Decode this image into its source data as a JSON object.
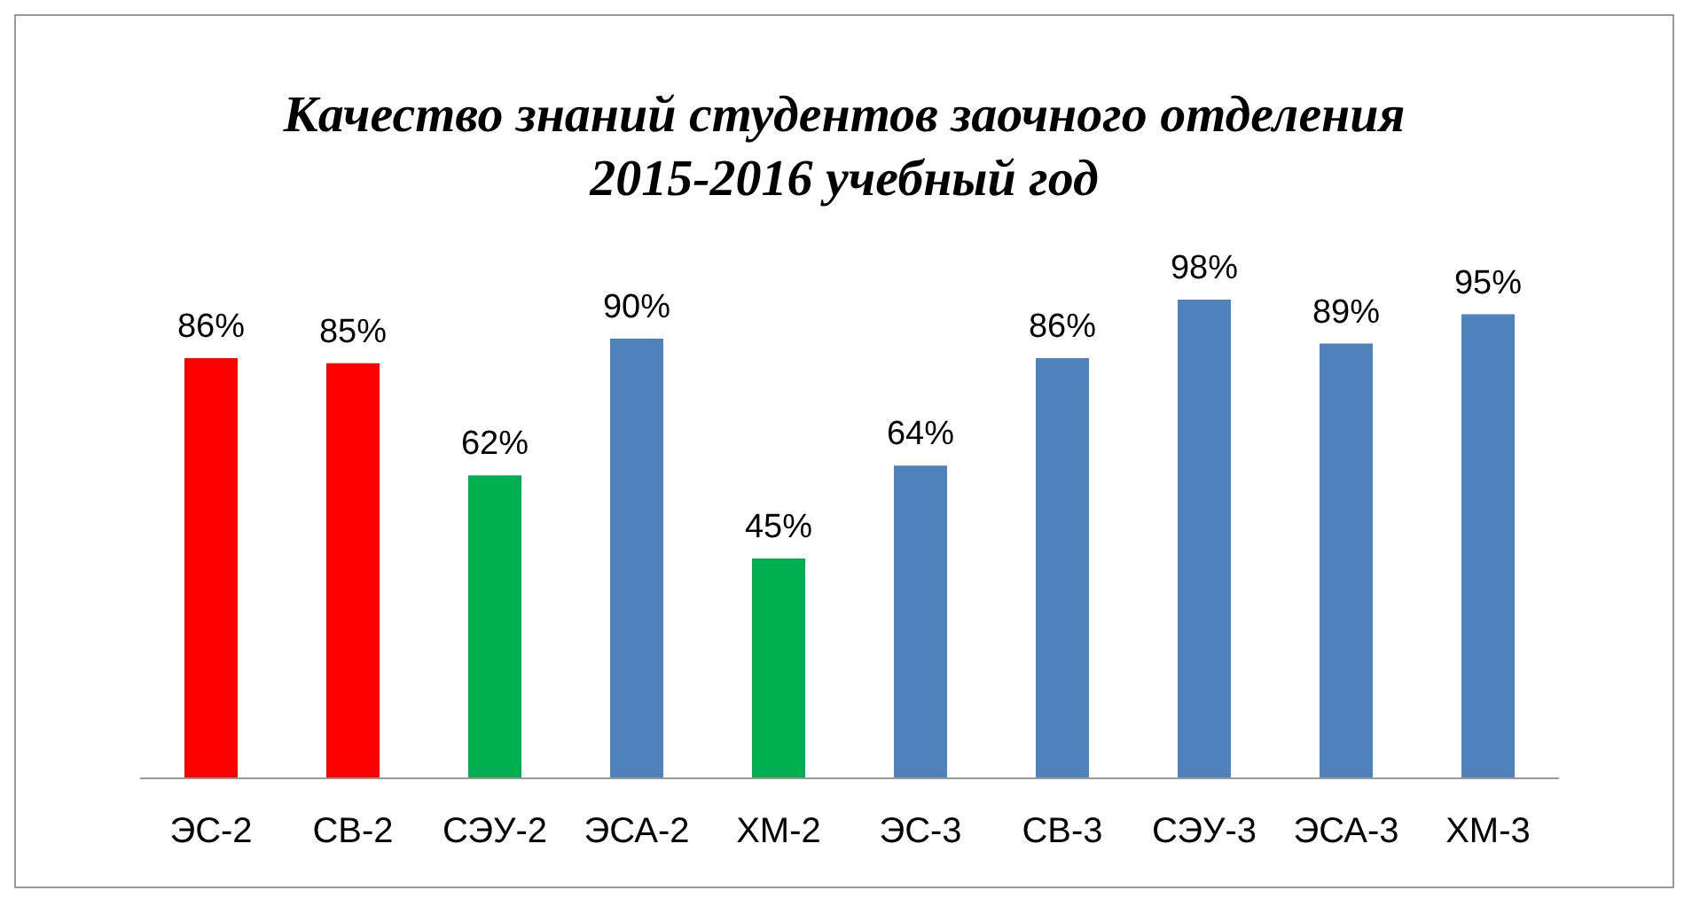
{
  "chart_data": {
    "type": "bar",
    "title": "Качество знаний студентов заочного отделения\n2015-2016 учебный год",
    "categories": [
      "ЭС-2",
      "СВ-2",
      "СЭУ-2",
      "ЭСА-2",
      "ХМ-2",
      "ЭС-3",
      "СВ-3",
      "СЭУ-3",
      "ЭСА-3",
      "ХМ-3"
    ],
    "values": [
      86,
      85,
      62,
      90,
      45,
      64,
      86,
      98,
      89,
      95
    ],
    "colors": [
      "#ff0000",
      "#ff0000",
      "#00b050",
      "#4f81bd",
      "#00b050",
      "#4f81bd",
      "#4f81bd",
      "#4f81bd",
      "#4f81bd",
      "#4f81bd"
    ],
    "value_labels": [
      "86%",
      "85%",
      "62%",
      "90%",
      "45%",
      "64%",
      "86%",
      "98%",
      "89%",
      "95%"
    ],
    "grid": false,
    "legend": false
  }
}
